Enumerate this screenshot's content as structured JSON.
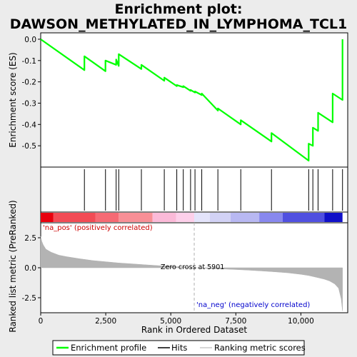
{
  "title": "Enrichment plot:\nDAWSON_METHYLATED_IN_LYMPHOMA_TCL1",
  "title_lines": [
    "Enrichment plot:",
    "DAWSON_METHYLATED_IN_LYMPHOMA_TCL1"
  ],
  "colors": {
    "profile": "#00ff00",
    "hits": "#000000",
    "metric_fill": "#b3b3b3",
    "zero_cross_line": "#b0b0b0",
    "pos_label": "#cc0000",
    "neg_label": "#0000cc",
    "background": "#ececec",
    "panel": "#ffffff"
  },
  "chart_data": {
    "type": "line",
    "x_range": [
      0,
      11800
    ],
    "n_genes": 11600,
    "xlabel": "Rank in Ordered Dataset",
    "x_ticks": [
      0,
      2500,
      5000,
      7500,
      10000
    ],
    "x_tick_labels": [
      "0",
      "2,500",
      "5,000",
      "7,500",
      "10,000"
    ],
    "enrichment": {
      "ylabel": "Enrichment score (ES)",
      "ylim": [
        -0.6,
        0.03
      ],
      "y_ticks": [
        0.0,
        -0.1,
        -0.2,
        -0.3,
        -0.4,
        -0.5
      ],
      "y_tick_labels": [
        "0.0",
        "-0.1",
        "-0.2",
        "-0.3",
        "-0.4",
        "-0.5"
      ],
      "series_name": "Enrichment profile",
      "hits": [
        1680,
        2490,
        2900,
        3000,
        3870,
        4750,
        5230,
        5480,
        5760,
        5930,
        6190,
        6810,
        7690,
        8870,
        10300,
        10460,
        10660,
        11220,
        11600
      ],
      "es_before_hit": [
        -0.145,
        -0.15,
        -0.12,
        -0.125,
        -0.14,
        -0.195,
        -0.22,
        -0.225,
        -0.242,
        -0.25,
        -0.262,
        -0.335,
        -0.4,
        -0.48,
        -0.57,
        -0.5,
        -0.43,
        -0.39,
        -0.285
      ],
      "es_after_hit": [
        -0.08,
        -0.1,
        -0.095,
        -0.07,
        -0.12,
        -0.18,
        -0.215,
        -0.22,
        -0.238,
        -0.245,
        -0.255,
        -0.325,
        -0.38,
        -0.44,
        -0.49,
        -0.415,
        -0.345,
        -0.255,
        0.0
      ]
    },
    "ranked_metric": {
      "ylabel": "Ranked list metric (PreRanked)",
      "ylim": [
        -3.75,
        3.75
      ],
      "y_ticks": [
        2.5,
        0.0,
        -2.5
      ],
      "y_tick_labels": [
        "2.5",
        "0.0",
        "-2.5"
      ],
      "series_name": "Ranking metric scores",
      "profile_x": [
        0,
        40,
        100,
        200,
        400,
        700,
        1000,
        1500,
        2000,
        2500,
        3000,
        3500,
        4000,
        4500,
        5000,
        5500,
        5901,
        6500,
        7000,
        7500,
        8000,
        8500,
        9000,
        9500,
        10000,
        10300,
        10600,
        10900,
        11100,
        11300,
        11450,
        11550,
        11600
      ],
      "profile_y": [
        2.6,
        2.2,
        1.9,
        1.55,
        1.3,
        1.05,
        0.92,
        0.75,
        0.6,
        0.5,
        0.4,
        0.33,
        0.25,
        0.18,
        0.12,
        0.06,
        0.0,
        -0.06,
        -0.1,
        -0.15,
        -0.2,
        -0.27,
        -0.34,
        -0.42,
        -0.55,
        -0.65,
        -0.8,
        -0.95,
        -1.1,
        -1.35,
        -1.7,
        -2.6,
        -3.6
      ],
      "zero_cross_label": "Zero cross at 5901",
      "zero_cross_x": 5901,
      "pos_label": "'na_pos' (positively correlated)",
      "neg_label": "'na_neg' (negatively correlated)"
    },
    "color_bar": [
      {
        "from": 0,
        "to": 480,
        "color": "#e8000e"
      },
      {
        "from": 480,
        "to": 2100,
        "color": "#f24b55"
      },
      {
        "from": 2100,
        "to": 3000,
        "color": "#f66a74"
      },
      {
        "from": 3000,
        "to": 4300,
        "color": "#f88f96"
      },
      {
        "from": 4300,
        "to": 5200,
        "color": "#fbbad8"
      },
      {
        "from": 5200,
        "to": 5901,
        "color": "#fdd0ea"
      },
      {
        "from": 5901,
        "to": 6500,
        "color": "#e4e4fb"
      },
      {
        "from": 6500,
        "to": 7300,
        "color": "#d2d2f5"
      },
      {
        "from": 7300,
        "to": 8400,
        "color": "#b8b8f2"
      },
      {
        "from": 8400,
        "to": 9300,
        "color": "#8888ee"
      },
      {
        "from": 9300,
        "to": 10900,
        "color": "#5050e0"
      },
      {
        "from": 10900,
        "to": 11600,
        "color": "#1010c8"
      }
    ]
  },
  "legend": {
    "items": [
      {
        "label": "Enrichment profile",
        "kind": "line",
        "color": "#00ff00"
      },
      {
        "label": "Hits",
        "kind": "line",
        "color": "#000000"
      },
      {
        "label": "Ranking metric scores",
        "kind": "line",
        "color": "#b3b3b3"
      }
    ]
  }
}
